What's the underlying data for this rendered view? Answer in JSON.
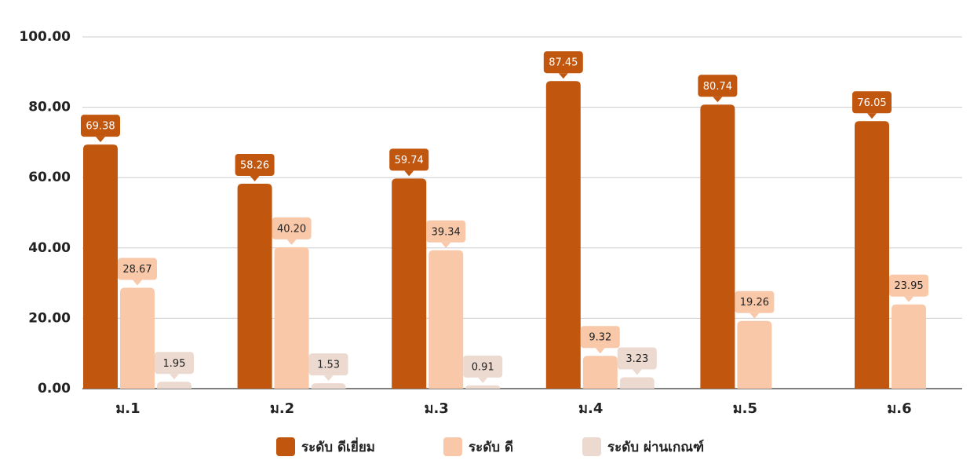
{
  "chart_data": {
    "type": "bar",
    "categories": [
      "ม.1",
      "ม.2",
      "ม.3",
      "ม.4",
      "ม.5",
      "ม.6"
    ],
    "series": [
      {
        "name": "ระดับ ดีเยี่ยม",
        "color": "#c1560f",
        "values": [
          69.38,
          58.26,
          59.74,
          87.45,
          80.74,
          76.05
        ],
        "value_labels": [
          "69.38",
          "58.26",
          "59.74",
          "87.45",
          "80.74",
          "76.05"
        ]
      },
      {
        "name": "ระดับ ดี",
        "color": "#f8c8a9",
        "values": [
          28.67,
          40.2,
          39.34,
          9.32,
          19.26,
          23.95
        ],
        "value_labels": [
          "28.67",
          "40.20",
          "39.34",
          "9.32",
          "19.26",
          "23.95"
        ]
      },
      {
        "name": "ระดับ ผ่านเกณฑ์",
        "color": "#ecdad0",
        "values": [
          1.95,
          1.53,
          0.91,
          3.23,
          null,
          null
        ],
        "value_labels": [
          "1.95",
          "1.53",
          "0.91",
          "3.23",
          null,
          null
        ]
      }
    ],
    "ylim": [
      0,
      100
    ],
    "yticks": [
      {
        "value": 0,
        "label": "0.00"
      },
      {
        "value": 20,
        "label": "20.00"
      },
      {
        "value": 40,
        "label": "40.00"
      },
      {
        "value": 60,
        "label": "60.00"
      },
      {
        "value": 80,
        "label": "80.00"
      },
      {
        "value": 100,
        "label": "100.00"
      }
    ],
    "grid": true,
    "legend": "bottom"
  }
}
